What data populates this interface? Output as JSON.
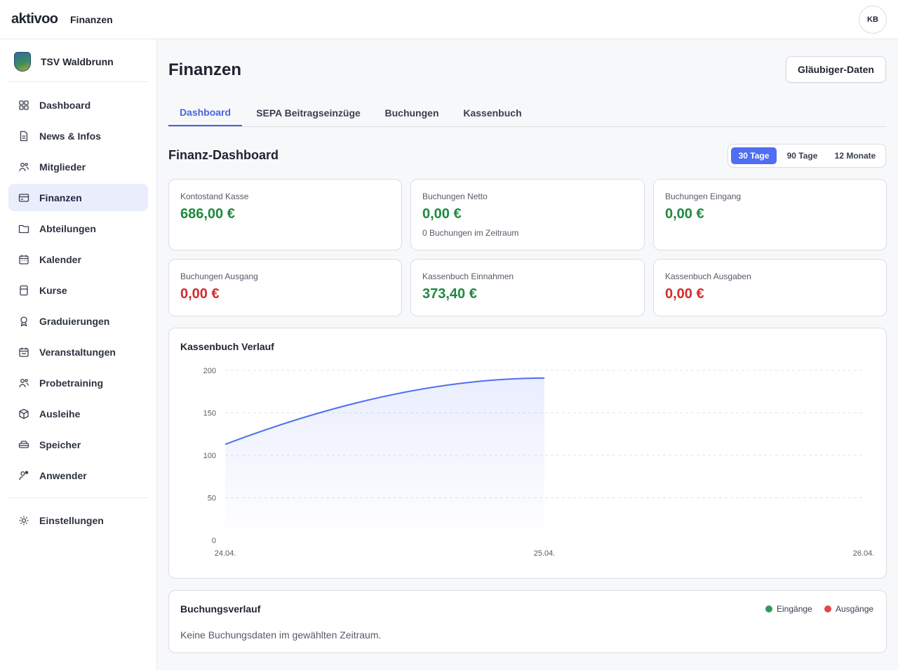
{
  "topbar": {
    "logo": "aktivoo",
    "title": "Finanzen",
    "avatar": "KB"
  },
  "sidebar": {
    "club_name": "TSV Waldbrunn",
    "items": [
      {
        "label": "Dashboard",
        "icon": "grid-icon"
      },
      {
        "label": "News & Infos",
        "icon": "document-icon"
      },
      {
        "label": "Mitglieder",
        "icon": "users-icon"
      },
      {
        "label": "Finanzen",
        "icon": "wallet-icon"
      },
      {
        "label": "Abteilungen",
        "icon": "folder-icon"
      },
      {
        "label": "Kalender",
        "icon": "calendar-icon"
      },
      {
        "label": "Kurse",
        "icon": "book-icon"
      },
      {
        "label": "Graduierungen",
        "icon": "award-icon"
      },
      {
        "label": "Veranstaltungen",
        "icon": "calendar-event-icon"
      },
      {
        "label": "Probetraining",
        "icon": "users-trial-icon"
      },
      {
        "label": "Ausleihe",
        "icon": "box-icon"
      },
      {
        "label": "Speicher",
        "icon": "storage-icon"
      },
      {
        "label": "Anwender",
        "icon": "user-settings-icon"
      }
    ],
    "settings": {
      "label": "Einstellungen",
      "icon": "gear-icon"
    }
  },
  "main": {
    "title": "Finanzen",
    "creditor_button": "Gläubiger-Daten",
    "tabs": [
      {
        "label": "Dashboard",
        "active": true
      },
      {
        "label": "SEPA Beitragseinzüge",
        "active": false
      },
      {
        "label": "Buchungen",
        "active": false
      },
      {
        "label": "Kassenbuch",
        "active": false
      }
    ],
    "section_title": "Finanz-Dashboard",
    "ranges": [
      {
        "label": "30 Tage",
        "active": true
      },
      {
        "label": "90 Tage",
        "active": false
      },
      {
        "label": "12 Monate",
        "active": false
      }
    ],
    "cards": [
      {
        "label": "Kontostand Kasse",
        "value": "686,00 €",
        "tone": "green",
        "sub": ""
      },
      {
        "label": "Buchungen Netto",
        "value": "0,00 €",
        "tone": "green",
        "sub": "0 Buchungen im Zeitraum"
      },
      {
        "label": "Buchungen Eingang",
        "value": "0,00 €",
        "tone": "green",
        "sub": ""
      },
      {
        "label": "Buchungen Ausgang",
        "value": "0,00 €",
        "tone": "red",
        "sub": ""
      },
      {
        "label": "Kassenbuch Einnahmen",
        "value": "373,40 €",
        "tone": "green",
        "sub": ""
      },
      {
        "label": "Kassenbuch Ausgaben",
        "value": "0,00 €",
        "tone": "red",
        "sub": ""
      }
    ],
    "kassenbuch_chart": {
      "title": "Kassenbuch Verlauf"
    },
    "buchungsverlauf": {
      "title": "Buchungsverlauf",
      "legend_in": "Eingänge",
      "legend_out": "Ausgänge",
      "empty_message": "Keine Buchungsdaten im gewählten Zeitraum."
    }
  },
  "colors": {
    "accent": "#4f6ef2",
    "positive": "#1e8a3e",
    "negative": "#d22b2b",
    "legend_in": "#2e9b5a",
    "legend_out": "#e04848"
  },
  "chart_data": {
    "type": "area",
    "title": "Kassenbuch Verlauf",
    "x": [
      "24.04.",
      "25.04."
    ],
    "x_ticks": [
      "24.04.",
      "25.04.",
      "26.04."
    ],
    "series": [
      {
        "values": [
          113,
          191
        ]
      }
    ],
    "ylim": [
      0,
      200
    ],
    "y_ticks": [
      0,
      50,
      100,
      150,
      200
    ],
    "grid": true,
    "color": "#4f6ef2"
  }
}
